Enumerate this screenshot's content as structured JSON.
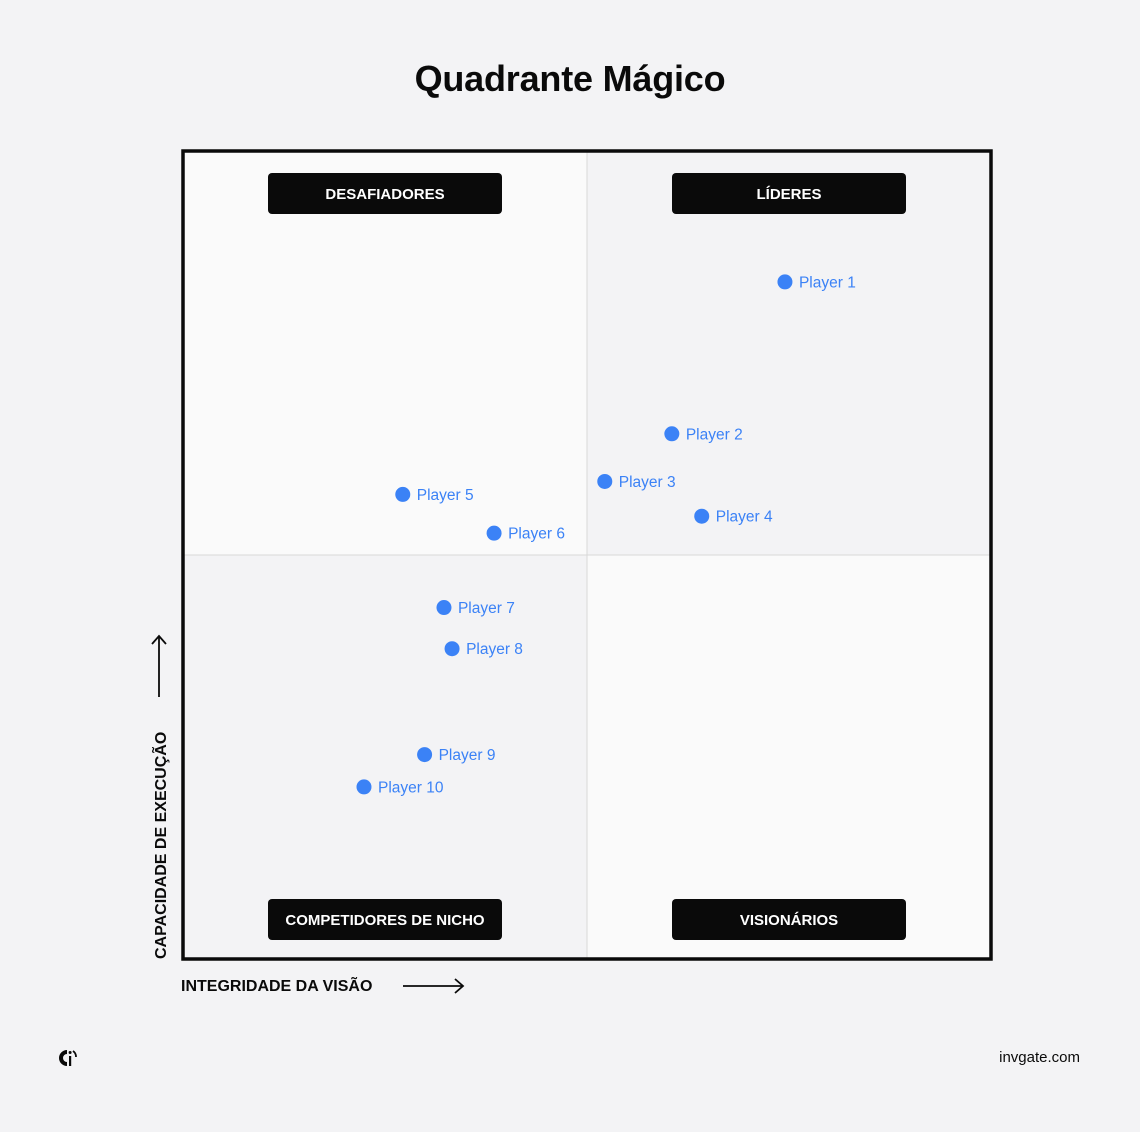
{
  "title": "Quadrante Mágico",
  "colors": {
    "background": "#f3f3f5",
    "quadrant_light": "#fafafa",
    "quadrant_shaded": "#f3f3f5",
    "border": "#0a0a0a",
    "label_bg": "#0a0a0a",
    "label_text": "#ffffff",
    "point": "#3b82f6",
    "divider": "#d8d8d8"
  },
  "chart_data": {
    "type": "scatter",
    "title": "Quadrante Mágico",
    "xlabel": "INTEGRIDADE DA VISÃO",
    "ylabel": "CAPACIDADE DE EXECUÇÃO",
    "xlim": [
      0,
      100
    ],
    "ylim": [
      0,
      100
    ],
    "grid": false,
    "quadrants": {
      "top_left": "DESAFIADORES",
      "top_right": "LÍDERES",
      "bottom_left": "COMPETIDORES DE NICHO",
      "bottom_right": "VISIONÁRIOS"
    },
    "points": [
      {
        "label": "Player 1",
        "x": 74.5,
        "y": 83.8
      },
      {
        "label": "Player 2",
        "x": 60.5,
        "y": 65.0
      },
      {
        "label": "Player 3",
        "x": 52.2,
        "y": 59.1
      },
      {
        "label": "Player 4",
        "x": 64.2,
        "y": 54.8
      },
      {
        "label": "Player 5",
        "x": 27.2,
        "y": 57.5
      },
      {
        "label": "Player 6",
        "x": 38.5,
        "y": 52.7
      },
      {
        "label": "Player 7",
        "x": 32.3,
        "y": 43.5
      },
      {
        "label": "Player 8",
        "x": 33.3,
        "y": 38.4
      },
      {
        "label": "Player 9",
        "x": 29.9,
        "y": 25.3
      },
      {
        "label": "Player 10",
        "x": 22.4,
        "y": 21.3
      }
    ]
  },
  "footer": {
    "logo_icon": "invgate-logo-icon",
    "site": "invgate.com"
  }
}
